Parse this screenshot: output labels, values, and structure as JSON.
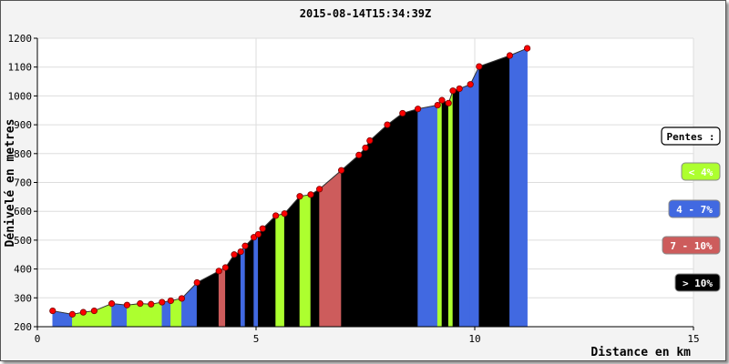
{
  "chart_data": {
    "type": "area",
    "title": "2015-08-14T15:34:39Z",
    "xlabel": "Distance en km",
    "ylabel": "Dénivelé en metres",
    "xlim": [
      0,
      15
    ],
    "ylim": [
      200,
      1200
    ],
    "x_ticks": [
      0,
      5,
      10,
      15
    ],
    "y_ticks": [
      200,
      300,
      400,
      500,
      600,
      700,
      800,
      900,
      1000,
      1100,
      1200
    ],
    "grid": true,
    "legend_position": "right",
    "legend": {
      "title": "Pentes :",
      "entries": [
        {
          "label": "< 4%",
          "color": "#adff2f",
          "text_color": "#ffffff"
        },
        {
          "label": "4 - 7%",
          "color": "#4169e1",
          "text_color": "#ffffff"
        },
        {
          "label": "7 - 10%",
          "color": "#cd5c5c",
          "text_color": "#ffffff"
        },
        {
          "label": "> 10%",
          "color": "#000000",
          "text_color": "#ffffff"
        }
      ]
    },
    "colors": {
      "<4": "#adff2f",
      "4-7": "#4169e1",
      "7-10": "#cd5c5c",
      ">10": "#000000",
      "point": "#ff0000"
    },
    "points": [
      [
        0.35,
        255
      ],
      [
        0.8,
        243
      ],
      [
        1.05,
        250
      ],
      [
        1.3,
        255
      ],
      [
        1.7,
        280
      ],
      [
        2.05,
        275
      ],
      [
        2.35,
        280
      ],
      [
        2.6,
        278
      ],
      [
        2.85,
        285
      ],
      [
        3.05,
        290
      ],
      [
        3.3,
        298
      ],
      [
        3.65,
        353
      ],
      [
        4.15,
        393
      ],
      [
        4.3,
        405
      ],
      [
        4.5,
        450
      ],
      [
        4.65,
        460
      ],
      [
        4.75,
        480
      ],
      [
        4.95,
        510
      ],
      [
        5.05,
        520
      ],
      [
        5.15,
        540
      ],
      [
        5.45,
        585
      ],
      [
        5.65,
        592
      ],
      [
        6.0,
        652
      ],
      [
        6.25,
        658
      ],
      [
        6.45,
        677
      ],
      [
        6.95,
        742
      ],
      [
        7.35,
        795
      ],
      [
        7.5,
        820
      ],
      [
        7.6,
        845
      ],
      [
        8.0,
        900
      ],
      [
        8.35,
        940
      ],
      [
        8.7,
        955
      ],
      [
        9.15,
        968
      ],
      [
        9.25,
        985
      ],
      [
        9.4,
        975
      ],
      [
        9.5,
        1018
      ],
      [
        9.65,
        1025
      ],
      [
        9.9,
        1040
      ],
      [
        10.1,
        1102
      ],
      [
        10.8,
        1140
      ],
      [
        11.2,
        1165
      ]
    ],
    "segment_grades": [
      "4-7",
      "<4",
      "<4",
      "<4",
      "4-7",
      "<4",
      "<4",
      "<4",
      "4-7",
      "<4",
      "4-7",
      ">10",
      "7-10",
      ">10",
      ">10",
      "4-7",
      ">10",
      "4-7",
      ">10",
      ">10",
      "<4",
      ">10",
      "<4",
      ">10",
      "7-10",
      ">10",
      ">10",
      ">10",
      ">10",
      ">10",
      ">10",
      "4-7",
      "<4",
      ">10",
      "<4",
      ">10",
      "4-7",
      "4-7",
      ">10",
      "4-7"
    ]
  }
}
